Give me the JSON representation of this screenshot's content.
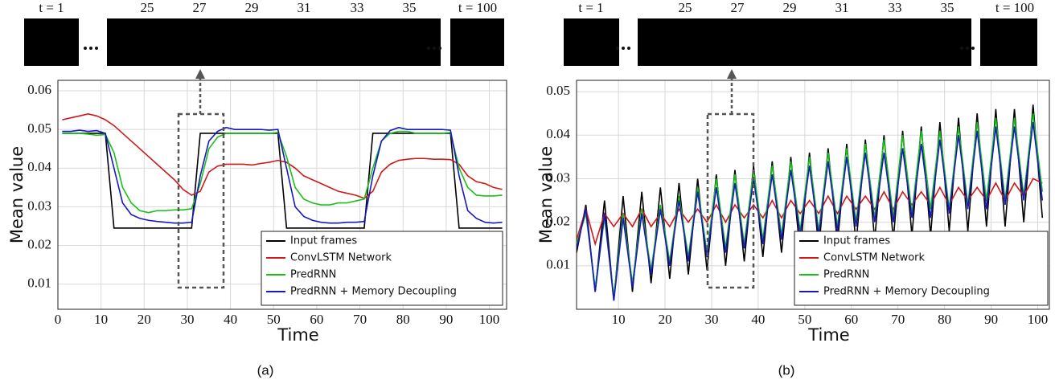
{
  "chart_data": [
    {
      "type": "line",
      "caption": "(a)",
      "xlabel": "Time",
      "ylabel": "Mean value",
      "frame_labels": [
        "t = 1",
        "25",
        "27",
        "29",
        "31",
        "33",
        "35",
        "t = 100"
      ],
      "x": [
        1,
        3,
        5,
        7,
        9,
        11,
        13,
        15,
        17,
        19,
        21,
        23,
        25,
        27,
        29,
        31,
        33,
        35,
        37,
        39,
        41,
        43,
        45,
        47,
        49,
        51,
        53,
        55,
        57,
        59,
        61,
        63,
        65,
        67,
        69,
        71,
        73,
        75,
        77,
        79,
        81,
        83,
        85,
        87,
        89,
        91,
        93,
        95,
        97,
        99,
        101,
        103
      ],
      "series": [
        {
          "name": "Input frames",
          "color": "#000000",
          "values": [
            0.049,
            0.049,
            0.049,
            0.049,
            0.049,
            0.049,
            0.0245,
            0.0245,
            0.0245,
            0.0245,
            0.0245,
            0.0245,
            0.0245,
            0.0245,
            0.0245,
            0.0245,
            0.049,
            0.049,
            0.049,
            0.049,
            0.049,
            0.049,
            0.049,
            0.049,
            0.049,
            0.049,
            0.0245,
            0.0245,
            0.0245,
            0.0245,
            0.0245,
            0.0245,
            0.0245,
            0.0245,
            0.0245,
            0.0245,
            0.049,
            0.049,
            0.049,
            0.049,
            0.049,
            0.049,
            0.049,
            0.049,
            0.049,
            0.049,
            0.0245,
            0.0245,
            0.0245,
            0.0245,
            0.0245,
            0.0245
          ]
        },
        {
          "name": "ConvLSTM Network",
          "color": "#d01818",
          "values": [
            0.0525,
            0.053,
            0.0535,
            0.054,
            0.0535,
            0.0525,
            0.051,
            0.049,
            0.047,
            0.045,
            0.043,
            0.041,
            0.039,
            0.037,
            0.0345,
            0.033,
            0.034,
            0.039,
            0.0405,
            0.041,
            0.041,
            0.041,
            0.0408,
            0.0412,
            0.0415,
            0.042,
            0.0415,
            0.04,
            0.038,
            0.037,
            0.036,
            0.035,
            0.034,
            0.0335,
            0.033,
            0.0322,
            0.034,
            0.039,
            0.041,
            0.042,
            0.0423,
            0.0425,
            0.0425,
            0.0423,
            0.0423,
            0.0422,
            0.041,
            0.038,
            0.0365,
            0.036,
            0.035,
            0.0345
          ]
        },
        {
          "name": "PredRNN",
          "color": "#18c018",
          "values": [
            0.049,
            0.049,
            0.049,
            0.0488,
            0.0485,
            0.0487,
            0.044,
            0.035,
            0.031,
            0.029,
            0.0285,
            0.029,
            0.029,
            0.0292,
            0.0292,
            0.0295,
            0.036,
            0.045,
            0.048,
            0.049,
            0.049,
            0.049,
            0.049,
            0.049,
            0.049,
            0.0492,
            0.043,
            0.035,
            0.032,
            0.031,
            0.0305,
            0.0305,
            0.031,
            0.031,
            0.0315,
            0.032,
            0.04,
            0.047,
            0.049,
            0.0495,
            0.0495,
            0.049,
            0.049,
            0.049,
            0.049,
            0.0492,
            0.04,
            0.035,
            0.033,
            0.0328,
            0.0328,
            0.033
          ]
        },
        {
          "name": "PredRNN + Memory Decoupling",
          "color": "#1818c0",
          "values": [
            0.0495,
            0.0495,
            0.0498,
            0.0495,
            0.0497,
            0.049,
            0.04,
            0.031,
            0.028,
            0.027,
            0.0265,
            0.0262,
            0.026,
            0.0258,
            0.0258,
            0.026,
            0.038,
            0.047,
            0.0495,
            0.0505,
            0.05,
            0.05,
            0.05,
            0.05,
            0.0498,
            0.05,
            0.04,
            0.03,
            0.0275,
            0.0265,
            0.026,
            0.0258,
            0.0258,
            0.026,
            0.026,
            0.0262,
            0.038,
            0.047,
            0.0497,
            0.0505,
            0.05,
            0.05,
            0.05,
            0.05,
            0.05,
            0.0498,
            0.038,
            0.029,
            0.027,
            0.026,
            0.0258,
            0.026
          ]
        }
      ],
      "xlim": [
        0,
        104
      ],
      "ylim": [
        0.0035,
        0.0627
      ],
      "xticks": [
        0,
        10,
        20,
        30,
        40,
        50,
        60,
        70,
        80,
        90,
        100
      ],
      "yticks": [
        0.01,
        0.02,
        0.03,
        0.04,
        0.05,
        0.06
      ],
      "grid": true,
      "legend": "lower right"
    },
    {
      "type": "line",
      "caption": "(b)",
      "xlabel": "Time",
      "ylabel": "Mean value",
      "frame_labels": [
        "t = 1",
        "25",
        "27",
        "29",
        "31",
        "33",
        "35",
        "t = 100"
      ],
      "x": [
        1,
        3,
        5,
        7,
        9,
        11,
        13,
        15,
        17,
        19,
        21,
        23,
        25,
        27,
        29,
        31,
        33,
        35,
        37,
        39,
        41,
        43,
        45,
        47,
        49,
        51,
        53,
        55,
        57,
        59,
        61,
        63,
        65,
        67,
        69,
        71,
        73,
        75,
        77,
        79,
        81,
        83,
        85,
        87,
        89,
        91,
        93,
        95,
        97,
        99,
        101
      ],
      "series": [
        {
          "name": "Input frames",
          "color": "#000000",
          "values": [
            0.013,
            0.024,
            0.004,
            0.025,
            0.002,
            0.026,
            0.004,
            0.027,
            0.006,
            0.028,
            0.007,
            0.029,
            0.008,
            0.03,
            0.009,
            0.031,
            0.01,
            0.032,
            0.011,
            0.033,
            0.012,
            0.034,
            0.013,
            0.035,
            0.013,
            0.036,
            0.014,
            0.037,
            0.015,
            0.038,
            0.015,
            0.039,
            0.016,
            0.04,
            0.016,
            0.041,
            0.017,
            0.042,
            0.017,
            0.043,
            0.018,
            0.044,
            0.018,
            0.045,
            0.019,
            0.046,
            0.019,
            0.046,
            0.02,
            0.047,
            0.021
          ]
        },
        {
          "name": "ConvLSTM Network",
          "color": "#d01818",
          "values": [
            0.016,
            0.023,
            0.015,
            0.022,
            0.019,
            0.022,
            0.019,
            0.023,
            0.019,
            0.022,
            0.019,
            0.023,
            0.02,
            0.023,
            0.02,
            0.024,
            0.02,
            0.024,
            0.021,
            0.024,
            0.021,
            0.025,
            0.021,
            0.025,
            0.022,
            0.025,
            0.022,
            0.026,
            0.022,
            0.026,
            0.023,
            0.026,
            0.023,
            0.027,
            0.023,
            0.027,
            0.024,
            0.027,
            0.024,
            0.028,
            0.024,
            0.028,
            0.025,
            0.028,
            0.025,
            0.029,
            0.025,
            0.029,
            0.026,
            0.03,
            0.029
          ]
        },
        {
          "name": "PredRNN",
          "color": "#18c018",
          "values": [
            0.015,
            0.022,
            0.005,
            0.021,
            0.003,
            0.022,
            0.006,
            0.023,
            0.009,
            0.024,
            0.011,
            0.026,
            0.012,
            0.028,
            0.013,
            0.03,
            0.014,
            0.031,
            0.015,
            0.032,
            0.016,
            0.033,
            0.017,
            0.034,
            0.018,
            0.035,
            0.018,
            0.036,
            0.019,
            0.037,
            0.02,
            0.038,
            0.021,
            0.039,
            0.021,
            0.04,
            0.022,
            0.041,
            0.023,
            0.041,
            0.023,
            0.042,
            0.024,
            0.043,
            0.025,
            0.044,
            0.025,
            0.044,
            0.026,
            0.045,
            0.027
          ]
        },
        {
          "name": "PredRNN + Memory Decoupling",
          "color": "#1818c0",
          "values": [
            0.014,
            0.023,
            0.004,
            0.022,
            0.002,
            0.021,
            0.005,
            0.022,
            0.008,
            0.023,
            0.01,
            0.025,
            0.011,
            0.027,
            0.012,
            0.028,
            0.013,
            0.029,
            0.014,
            0.03,
            0.015,
            0.031,
            0.016,
            0.032,
            0.017,
            0.033,
            0.017,
            0.034,
            0.018,
            0.035,
            0.019,
            0.036,
            0.02,
            0.036,
            0.02,
            0.037,
            0.021,
            0.038,
            0.021,
            0.039,
            0.022,
            0.04,
            0.023,
            0.041,
            0.023,
            0.042,
            0.024,
            0.042,
            0.025,
            0.043,
            0.025
          ]
        }
      ],
      "xlim": [
        1,
        102.5
      ],
      "ylim": [
        0,
        0.0526
      ],
      "xticks": [
        10,
        20,
        30,
        40,
        50,
        60,
        70,
        80,
        90,
        100
      ],
      "yticks": [
        0.01,
        0.02,
        0.03,
        0.04,
        0.05
      ],
      "grid": true,
      "legend": "lower right"
    }
  ]
}
